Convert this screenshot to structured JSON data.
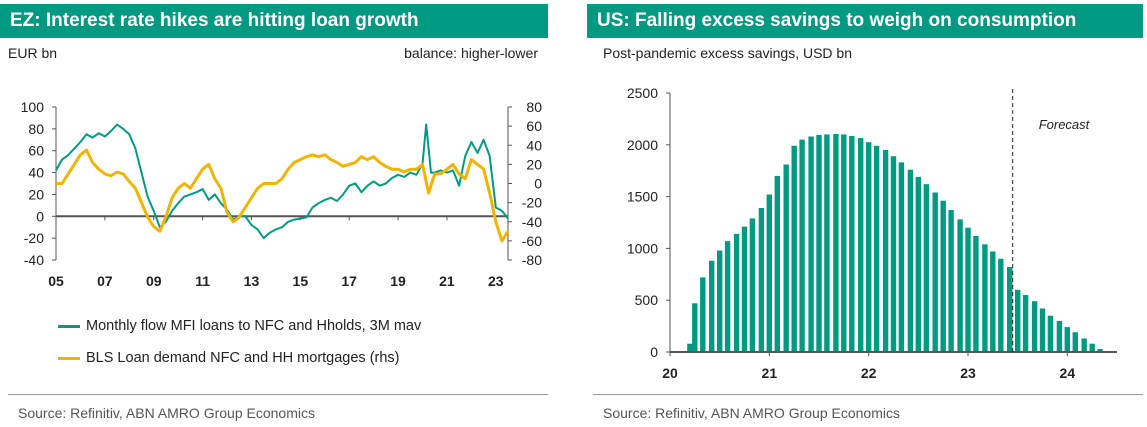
{
  "colors": {
    "teal": "#009a82",
    "yellow": "#f0b400",
    "axis": "#555555",
    "text": "#222222",
    "source": "#555555"
  },
  "left": {
    "title": "EZ: Interest rate hikes are hitting loan growth",
    "unit_left": "EUR bn",
    "unit_right": "balance: higher-lower",
    "source": "Source: Refinitiv, ABN AMRO Group Economics"
  },
  "right": {
    "title": "US: Falling excess savings to weigh on consumption",
    "subtitle": "Post-pandemic excess savings, USD bn",
    "source": "Source: Refinitiv, ABN AMRO Group Economics"
  },
  "chart_data": [
    {
      "type": "line",
      "title": "EZ: Interest rate hikes are hitting loan growth",
      "ylabel": "EUR bn",
      "y2label": "balance: higher-lower",
      "xlim": [
        2005,
        2023.5
      ],
      "ylim": [
        -40,
        100
      ],
      "y2lim": [
        -80,
        80
      ],
      "xticks": [
        "05",
        "07",
        "09",
        "11",
        "13",
        "15",
        "17",
        "19",
        "21",
        "23"
      ],
      "yticks": [
        "100",
        "80",
        "60",
        "40",
        "20",
        "0",
        "-20",
        "-40"
      ],
      "y2ticks": [
        "80",
        "60",
        "40",
        "20",
        "0",
        "-20",
        "-40",
        "-60",
        "-80"
      ],
      "grid": false,
      "legend": "bottom",
      "series": [
        {
          "name": "Monthly flow MFI loans to NFC and Hholds, 3M mav",
          "axis": "left",
          "color": "#009a82",
          "x": [
            2005.0,
            2005.25,
            2005.5,
            2005.75,
            2006.0,
            2006.25,
            2006.5,
            2006.75,
            2007.0,
            2007.25,
            2007.5,
            2007.75,
            2008.0,
            2008.25,
            2008.5,
            2008.75,
            2009.0,
            2009.25,
            2009.5,
            2009.75,
            2010.0,
            2010.25,
            2010.5,
            2010.75,
            2011.0,
            2011.25,
            2011.5,
            2011.75,
            2012.0,
            2012.25,
            2012.5,
            2012.75,
            2013.0,
            2013.25,
            2013.5,
            2013.75,
            2014.0,
            2014.25,
            2014.5,
            2014.75,
            2015.0,
            2015.25,
            2015.5,
            2015.75,
            2016.0,
            2016.25,
            2016.5,
            2016.75,
            2017.0,
            2017.25,
            2017.5,
            2017.75,
            2018.0,
            2018.25,
            2018.5,
            2018.75,
            2019.0,
            2019.25,
            2019.5,
            2019.75,
            2020.0,
            2020.15,
            2020.35,
            2020.5,
            2020.75,
            2021.0,
            2021.25,
            2021.5,
            2021.75,
            2022.0,
            2022.25,
            2022.5,
            2022.75,
            2023.0,
            2023.25,
            2023.5
          ],
          "values": [
            42,
            52,
            56,
            62,
            68,
            75,
            72,
            76,
            73,
            78,
            84,
            80,
            75,
            62,
            40,
            18,
            5,
            -10,
            -5,
            5,
            12,
            18,
            20,
            22,
            25,
            15,
            20,
            12,
            6,
            -3,
            0,
            0,
            -8,
            -12,
            -20,
            -15,
            -12,
            -10,
            -5,
            -3,
            -2,
            -1,
            8,
            12,
            15,
            17,
            14,
            20,
            28,
            30,
            22,
            28,
            32,
            28,
            30,
            35,
            38,
            36,
            40,
            38,
            48,
            84,
            40,
            40,
            42,
            40,
            42,
            28,
            55,
            68,
            58,
            70,
            55,
            8,
            5,
            -2
          ]
        },
        {
          "name": "BLS Loan demand NFC and HH mortgages (rhs)",
          "axis": "right",
          "color": "#f0b400",
          "x": [
            2005.0,
            2005.25,
            2005.5,
            2005.75,
            2006.0,
            2006.25,
            2006.5,
            2006.75,
            2007.0,
            2007.25,
            2007.5,
            2007.75,
            2008.0,
            2008.25,
            2008.5,
            2008.75,
            2009.0,
            2009.25,
            2009.5,
            2009.75,
            2010.0,
            2010.25,
            2010.5,
            2010.75,
            2011.0,
            2011.25,
            2011.5,
            2011.75,
            2012.0,
            2012.25,
            2012.5,
            2012.75,
            2013.0,
            2013.25,
            2013.5,
            2013.75,
            2014.0,
            2014.25,
            2014.5,
            2014.75,
            2015.0,
            2015.25,
            2015.5,
            2015.75,
            2016.0,
            2016.25,
            2016.5,
            2016.75,
            2017.0,
            2017.25,
            2017.5,
            2017.75,
            2018.0,
            2018.25,
            2018.5,
            2018.75,
            2019.0,
            2019.25,
            2019.5,
            2019.75,
            2020.0,
            2020.25,
            2020.5,
            2020.75,
            2021.0,
            2021.25,
            2021.5,
            2021.75,
            2022.0,
            2022.25,
            2022.5,
            2022.75,
            2023.0,
            2023.25,
            2023.5
          ],
          "values": [
            0,
            0,
            10,
            20,
            30,
            35,
            22,
            15,
            10,
            8,
            12,
            10,
            2,
            -5,
            -20,
            -35,
            -45,
            -50,
            -35,
            -15,
            -5,
            0,
            -5,
            5,
            15,
            20,
            5,
            -5,
            -30,
            -40,
            -35,
            -25,
            -15,
            -5,
            0,
            0,
            0,
            5,
            15,
            22,
            25,
            28,
            30,
            28,
            30,
            25,
            22,
            18,
            20,
            22,
            28,
            25,
            28,
            22,
            18,
            15,
            15,
            12,
            15,
            15,
            20,
            -10,
            10,
            10,
            15,
            20,
            10,
            5,
            25,
            20,
            15,
            -10,
            -40,
            -60,
            -50
          ]
        }
      ]
    },
    {
      "type": "bar",
      "title": "US: Falling excess savings to weigh on consumption",
      "ylabel": "Post-pandemic excess savings, USD bn",
      "xlim": [
        2020,
        2024.5
      ],
      "ylim": [
        0,
        2500
      ],
      "xticks": [
        "20",
        "21",
        "22",
        "23",
        "24"
      ],
      "yticks": [
        "2500",
        "2000",
        "1500",
        "1000",
        "500",
        "0"
      ],
      "grid": false,
      "annotation": {
        "text": "Forecast",
        "x": 2023.45
      },
      "color": "#009a82",
      "x": [
        2020.2,
        2020.25,
        2020.33,
        2020.42,
        2020.5,
        2020.58,
        2020.67,
        2020.75,
        2020.83,
        2020.92,
        2021.0,
        2021.08,
        2021.17,
        2021.25,
        2021.33,
        2021.42,
        2021.5,
        2021.58,
        2021.67,
        2021.75,
        2021.83,
        2021.92,
        2022.0,
        2022.08,
        2022.17,
        2022.25,
        2022.33,
        2022.42,
        2022.5,
        2022.58,
        2022.67,
        2022.75,
        2022.83,
        2022.92,
        2023.0,
        2023.08,
        2023.17,
        2023.25,
        2023.33,
        2023.42,
        2023.5,
        2023.58,
        2023.67,
        2023.75,
        2023.83,
        2023.92,
        2024.0,
        2024.08,
        2024.17,
        2024.25,
        2024.33
      ],
      "values": [
        80,
        470,
        720,
        880,
        980,
        1070,
        1140,
        1210,
        1290,
        1390,
        1520,
        1700,
        1810,
        1990,
        2050,
        2080,
        2095,
        2100,
        2105,
        2100,
        2085,
        2065,
        2025,
        1990,
        1950,
        1890,
        1830,
        1760,
        1690,
        1620,
        1540,
        1460,
        1370,
        1280,
        1200,
        1120,
        1040,
        970,
        900,
        820,
        600,
        550,
        490,
        420,
        350,
        300,
        240,
        190,
        130,
        80,
        30
      ]
    }
  ]
}
